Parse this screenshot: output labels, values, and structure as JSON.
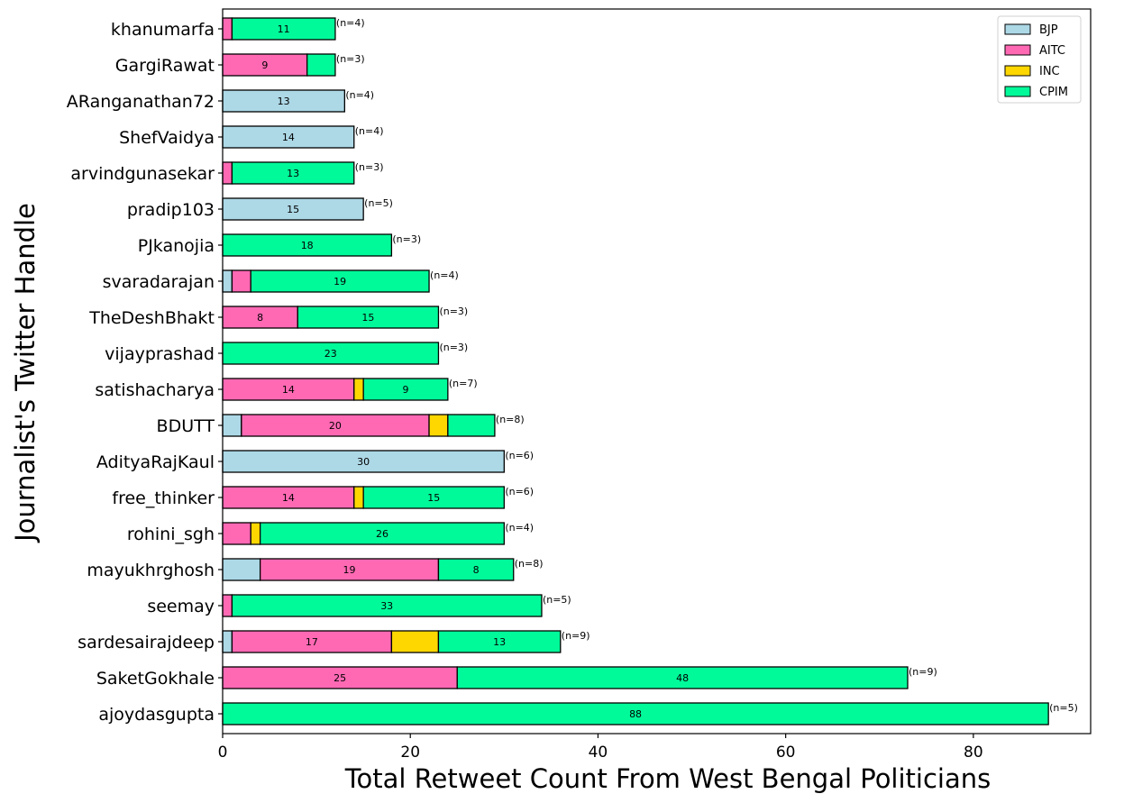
{
  "chart_data": {
    "type": "bar",
    "orientation": "horizontal",
    "stacked": true,
    "xlabel": "Total Retweet Count From West Bengal Politicians",
    "ylabel": "Journalist's Twitter Handle",
    "xlim": [
      0,
      92.5
    ],
    "xticks": [
      0,
      20,
      40,
      60,
      80
    ],
    "grid": false,
    "legend_position": "top-right",
    "categories": [
      "khanumarfa",
      "GargiRawat",
      "ARanganathan72",
      "ShefVaidya",
      "arvindgunasekar",
      "pradip103",
      "PJkanojia",
      "svaradarajan",
      "TheDeshBhakt",
      "vijayprashad",
      "satishacharya",
      "BDUTT",
      "AdityaRajKaul",
      "free_thinker",
      "rohini_sgh",
      "mayukhrghosh",
      "seemay",
      "sardesairajdeep",
      "SaketGokhale",
      "ajoydasgupta"
    ],
    "series": [
      {
        "name": "BJP",
        "color": "#add8e6",
        "values": [
          0,
          0,
          13,
          14,
          0,
          15,
          0,
          1,
          0,
          0,
          0,
          2,
          30,
          0,
          0,
          4,
          0,
          1,
          0,
          0
        ]
      },
      {
        "name": "AITC",
        "color": "#ff69b4",
        "values": [
          1,
          9,
          0,
          0,
          1,
          0,
          0,
          2,
          8,
          0,
          14,
          20,
          0,
          14,
          3,
          19,
          1,
          17,
          25,
          0
        ]
      },
      {
        "name": "INC",
        "color": "#ffd700",
        "values": [
          0,
          0,
          0,
          0,
          0,
          0,
          0,
          0,
          0,
          0,
          1,
          2,
          0,
          1,
          1,
          0,
          0,
          5,
          0,
          0
        ]
      },
      {
        "name": "CPIM",
        "color": "#00fa9a",
        "values": [
          11,
          3,
          0,
          0,
          13,
          0,
          18,
          19,
          15,
          23,
          9,
          5,
          0,
          15,
          26,
          8,
          33,
          13,
          48,
          88
        ]
      }
    ],
    "labeled_segments": [
      [
        null,
        null,
        null,
        "11"
      ],
      [
        null,
        "9",
        null,
        null
      ],
      [
        "13",
        null,
        null,
        null
      ],
      [
        "14",
        null,
        null,
        null
      ],
      [
        null,
        null,
        null,
        "13"
      ],
      [
        "15",
        null,
        null,
        null
      ],
      [
        null,
        null,
        null,
        "18"
      ],
      [
        null,
        null,
        null,
        "19"
      ],
      [
        null,
        "8",
        null,
        "15"
      ],
      [
        null,
        null,
        null,
        "23"
      ],
      [
        null,
        "14",
        null,
        "9"
      ],
      [
        null,
        "20",
        null,
        null
      ],
      [
        "30",
        null,
        null,
        null
      ],
      [
        null,
        "14",
        null,
        "15"
      ],
      [
        null,
        null,
        null,
        "26"
      ],
      [
        null,
        "19",
        null,
        "8"
      ],
      [
        null,
        null,
        null,
        "33"
      ],
      [
        null,
        "17",
        null,
        "13"
      ],
      [
        null,
        "25",
        null,
        "48"
      ],
      [
        null,
        null,
        null,
        "88"
      ]
    ],
    "n_labels": [
      "(n=4)",
      "(n=3)",
      "(n=4)",
      "(n=4)",
      "(n=3)",
      "(n=5)",
      "(n=3)",
      "(n=4)",
      "(n=3)",
      "(n=3)",
      "(n=7)",
      "(n=8)",
      "(n=6)",
      "(n=6)",
      "(n=4)",
      "(n=8)",
      "(n=5)",
      "(n=9)",
      "(n=9)",
      "(n=5)"
    ]
  }
}
